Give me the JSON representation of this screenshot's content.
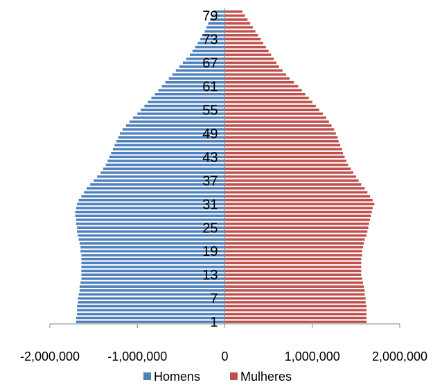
{
  "chart_data": {
    "type": "bar",
    "orientation": "horizontal",
    "stacked": true,
    "title": "",
    "xlabel": "",
    "ylabel": "",
    "xlim": [
      -2000000,
      2000000
    ],
    "x_ticks": [
      -2000000,
      -1000000,
      0,
      1000000,
      2000000
    ],
    "x_tick_labels": [
      "-2,000,000",
      "-1,000,000",
      "0",
      "1,000,000",
      "2,000,000"
    ],
    "y_tick_labels": [
      "1",
      "7",
      "13",
      "19",
      "25",
      "31",
      "37",
      "43",
      "49",
      "55",
      "61",
      "67",
      "73",
      "79"
    ],
    "grid": false,
    "legend": "bottom",
    "categories": [
      "1",
      "2",
      "3",
      "4",
      "5",
      "6",
      "7",
      "8",
      "9",
      "10",
      "11",
      "12",
      "13",
      "14",
      "15",
      "16",
      "17",
      "18",
      "19",
      "20",
      "21",
      "22",
      "23",
      "24",
      "25",
      "26",
      "27",
      "28",
      "29",
      "30",
      "31",
      "32",
      "33",
      "34",
      "35",
      "36",
      "37",
      "38",
      "39",
      "40",
      "41",
      "42",
      "43",
      "44",
      "45",
      "46",
      "47",
      "48",
      "49",
      "50",
      "51",
      "52",
      "53",
      "54",
      "55",
      "56",
      "57",
      "58",
      "59",
      "60",
      "61",
      "62",
      "63",
      "64",
      "65",
      "66",
      "67",
      "68",
      "69",
      "70",
      "71",
      "72",
      "73",
      "74",
      "75",
      "76",
      "77",
      "78",
      "79",
      "80"
    ],
    "series": [
      {
        "name": "Homens",
        "color": "#4F81BD",
        "values": [
          -1700000,
          -1700000,
          -1690000,
          -1690000,
          -1690000,
          -1680000,
          -1680000,
          -1670000,
          -1660000,
          -1660000,
          -1650000,
          -1640000,
          -1640000,
          -1640000,
          -1640000,
          -1640000,
          -1640000,
          -1640000,
          -1650000,
          -1650000,
          -1660000,
          -1670000,
          -1680000,
          -1690000,
          -1690000,
          -1700000,
          -1700000,
          -1710000,
          -1710000,
          -1700000,
          -1690000,
          -1670000,
          -1640000,
          -1610000,
          -1580000,
          -1540000,
          -1500000,
          -1460000,
          -1420000,
          -1390000,
          -1360000,
          -1340000,
          -1320000,
          -1300000,
          -1280000,
          -1260000,
          -1240000,
          -1220000,
          -1200000,
          -1170000,
          -1130000,
          -1090000,
          -1050000,
          -1000000,
          -960000,
          -920000,
          -880000,
          -840000,
          -800000,
          -760000,
          -720000,
          -680000,
          -640000,
          -600000,
          -560000,
          -520000,
          -480000,
          -440000,
          -400000,
          -370000,
          -340000,
          -310000,
          -280000,
          -260000,
          -230000,
          -210000,
          -190000,
          -170000,
          -150000,
          -130000
        ]
      },
      {
        "name": "Mulheres",
        "color": "#C0504D",
        "values": [
          1620000,
          1620000,
          1620000,
          1620000,
          1620000,
          1610000,
          1610000,
          1600000,
          1600000,
          1590000,
          1580000,
          1570000,
          1560000,
          1560000,
          1560000,
          1560000,
          1560000,
          1570000,
          1570000,
          1580000,
          1590000,
          1600000,
          1620000,
          1630000,
          1640000,
          1650000,
          1660000,
          1670000,
          1680000,
          1690000,
          1710000,
          1690000,
          1660000,
          1630000,
          1600000,
          1560000,
          1530000,
          1500000,
          1470000,
          1440000,
          1410000,
          1390000,
          1370000,
          1350000,
          1340000,
          1320000,
          1300000,
          1290000,
          1270000,
          1250000,
          1220000,
          1190000,
          1160000,
          1120000,
          1080000,
          1040000,
          1000000,
          960000,
          920000,
          880000,
          840000,
          790000,
          740000,
          700000,
          660000,
          620000,
          590000,
          560000,
          530000,
          500000,
          470000,
          440000,
          410000,
          380000,
          350000,
          320000,
          290000,
          260000,
          230000,
          200000
        ]
      }
    ]
  }
}
